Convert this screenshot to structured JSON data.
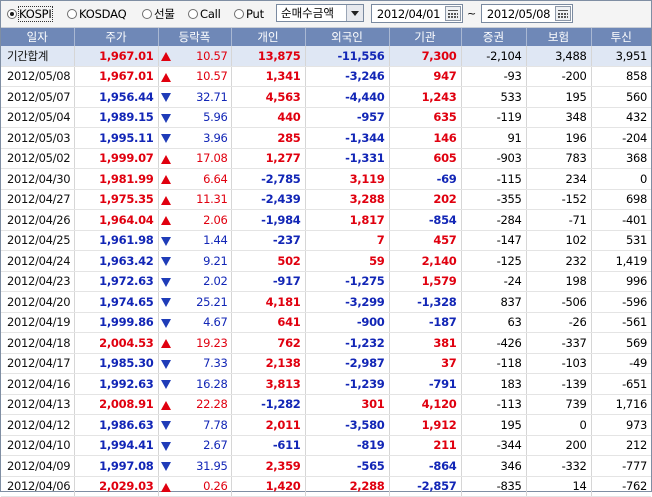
{
  "market_options": [
    {
      "label": "KOSPI",
      "selected": true
    },
    {
      "label": "KOSDAQ",
      "selected": false
    },
    {
      "label": "선물",
      "selected": false
    },
    {
      "label": "Call",
      "selected": false
    },
    {
      "label": "Put",
      "selected": false
    }
  ],
  "metric_select": {
    "value": "순매수금액"
  },
  "date_range": {
    "start": "2012/04/01",
    "separator": "~",
    "end": "2012/05/08"
  },
  "table": {
    "headers": [
      "일자",
      "주가",
      "등락폭",
      "개인",
      "외국인",
      "기관",
      "증권",
      "보험",
      "투신"
    ],
    "rows": [
      {
        "date": "기간합계",
        "price": "1,967.01",
        "dir": "up",
        "change": "10.57",
        "indiv": "13,875",
        "foreign": "-11,556",
        "inst": "7,300",
        "sec": "-2,104",
        "ins": "3,488",
        "trust": "3,951",
        "summary": true
      },
      {
        "date": "2012/05/08",
        "price": "1,967.01",
        "dir": "up",
        "change": "10.57",
        "indiv": "1,341",
        "foreign": "-3,246",
        "inst": "947",
        "sec": "-93",
        "ins": "-200",
        "trust": "858"
      },
      {
        "date": "2012/05/07",
        "price": "1,956.44",
        "dir": "down",
        "change": "32.71",
        "indiv": "4,563",
        "foreign": "-4,440",
        "inst": "1,243",
        "sec": "533",
        "ins": "195",
        "trust": "560"
      },
      {
        "date": "2012/05/04",
        "price": "1,989.15",
        "dir": "down",
        "change": "5.96",
        "indiv": "440",
        "foreign": "-957",
        "inst": "635",
        "sec": "-119",
        "ins": "348",
        "trust": "432"
      },
      {
        "date": "2012/05/03",
        "price": "1,995.11",
        "dir": "down",
        "change": "3.96",
        "indiv": "285",
        "foreign": "-1,344",
        "inst": "146",
        "sec": "91",
        "ins": "196",
        "trust": "-204"
      },
      {
        "date": "2012/05/02",
        "price": "1,999.07",
        "dir": "up",
        "change": "17.08",
        "indiv": "1,277",
        "foreign": "-1,331",
        "inst": "605",
        "sec": "-903",
        "ins": "783",
        "trust": "368"
      },
      {
        "date": "2012/04/30",
        "price": "1,981.99",
        "dir": "up",
        "change": "6.64",
        "indiv": "-2,785",
        "foreign": "3,119",
        "inst": "-69",
        "sec": "-115",
        "ins": "234",
        "trust": "0"
      },
      {
        "date": "2012/04/27",
        "price": "1,975.35",
        "dir": "up",
        "change": "11.31",
        "indiv": "-2,439",
        "foreign": "3,288",
        "inst": "202",
        "sec": "-355",
        "ins": "-152",
        "trust": "698"
      },
      {
        "date": "2012/04/26",
        "price": "1,964.04",
        "dir": "up",
        "change": "2.06",
        "indiv": "-1,984",
        "foreign": "1,817",
        "inst": "-854",
        "sec": "-284",
        "ins": "-71",
        "trust": "-401"
      },
      {
        "date": "2012/04/25",
        "price": "1,961.98",
        "dir": "down",
        "change": "1.44",
        "indiv": "-237",
        "foreign": "7",
        "inst": "457",
        "sec": "-147",
        "ins": "102",
        "trust": "531"
      },
      {
        "date": "2012/04/24",
        "price": "1,963.42",
        "dir": "down",
        "change": "9.21",
        "indiv": "502",
        "foreign": "59",
        "inst": "2,140",
        "sec": "-125",
        "ins": "232",
        "trust": "1,419"
      },
      {
        "date": "2012/04/23",
        "price": "1,972.63",
        "dir": "down",
        "change": "2.02",
        "indiv": "-917",
        "foreign": "-1,275",
        "inst": "1,579",
        "sec": "-24",
        "ins": "198",
        "trust": "996"
      },
      {
        "date": "2012/04/20",
        "price": "1,974.65",
        "dir": "down",
        "change": "25.21",
        "indiv": "4,181",
        "foreign": "-3,299",
        "inst": "-1,328",
        "sec": "837",
        "ins": "-506",
        "trust": "-596"
      },
      {
        "date": "2012/04/19",
        "price": "1,999.86",
        "dir": "down",
        "change": "4.67",
        "indiv": "641",
        "foreign": "-900",
        "inst": "-187",
        "sec": "63",
        "ins": "-26",
        "trust": "-561"
      },
      {
        "date": "2012/04/18",
        "price": "2,004.53",
        "dir": "up",
        "change": "19.23",
        "indiv": "762",
        "foreign": "-1,232",
        "inst": "381",
        "sec": "-426",
        "ins": "-337",
        "trust": "569"
      },
      {
        "date": "2012/04/17",
        "price": "1,985.30",
        "dir": "down",
        "change": "7.33",
        "indiv": "2,138",
        "foreign": "-2,987",
        "inst": "37",
        "sec": "-118",
        "ins": "-103",
        "trust": "-49"
      },
      {
        "date": "2012/04/16",
        "price": "1,992.63",
        "dir": "down",
        "change": "16.28",
        "indiv": "3,813",
        "foreign": "-1,239",
        "inst": "-791",
        "sec": "183",
        "ins": "-139",
        "trust": "-651"
      },
      {
        "date": "2012/04/13",
        "price": "2,008.91",
        "dir": "up",
        "change": "22.28",
        "indiv": "-1,282",
        "foreign": "301",
        "inst": "4,120",
        "sec": "-113",
        "ins": "739",
        "trust": "1,716"
      },
      {
        "date": "2012/04/12",
        "price": "1,986.63",
        "dir": "down",
        "change": "7.78",
        "indiv": "2,011",
        "foreign": "-3,580",
        "inst": "1,912",
        "sec": "195",
        "ins": "0",
        "trust": "973"
      },
      {
        "date": "2012/04/10",
        "price": "1,994.41",
        "dir": "down",
        "change": "2.67",
        "indiv": "-611",
        "foreign": "-819",
        "inst": "211",
        "sec": "-344",
        "ins": "200",
        "trust": "212"
      },
      {
        "date": "2012/04/09",
        "price": "1,997.08",
        "dir": "down",
        "change": "31.95",
        "indiv": "2,359",
        "foreign": "-565",
        "inst": "-864",
        "sec": "346",
        "ins": "-332",
        "trust": "-777"
      },
      {
        "date": "2012/04/06",
        "price": "2,029.03",
        "dir": "up",
        "change": "0.26",
        "indiv": "1,420",
        "foreign": "2,288",
        "inst": "-2,857",
        "sec": "-835",
        "ins": "14",
        "trust": "-762"
      }
    ]
  },
  "colors": {
    "up": "#e0000f",
    "down": "#1226b6",
    "header_bg": "#6f88b7",
    "summary_bg": "#dfe7f4"
  }
}
